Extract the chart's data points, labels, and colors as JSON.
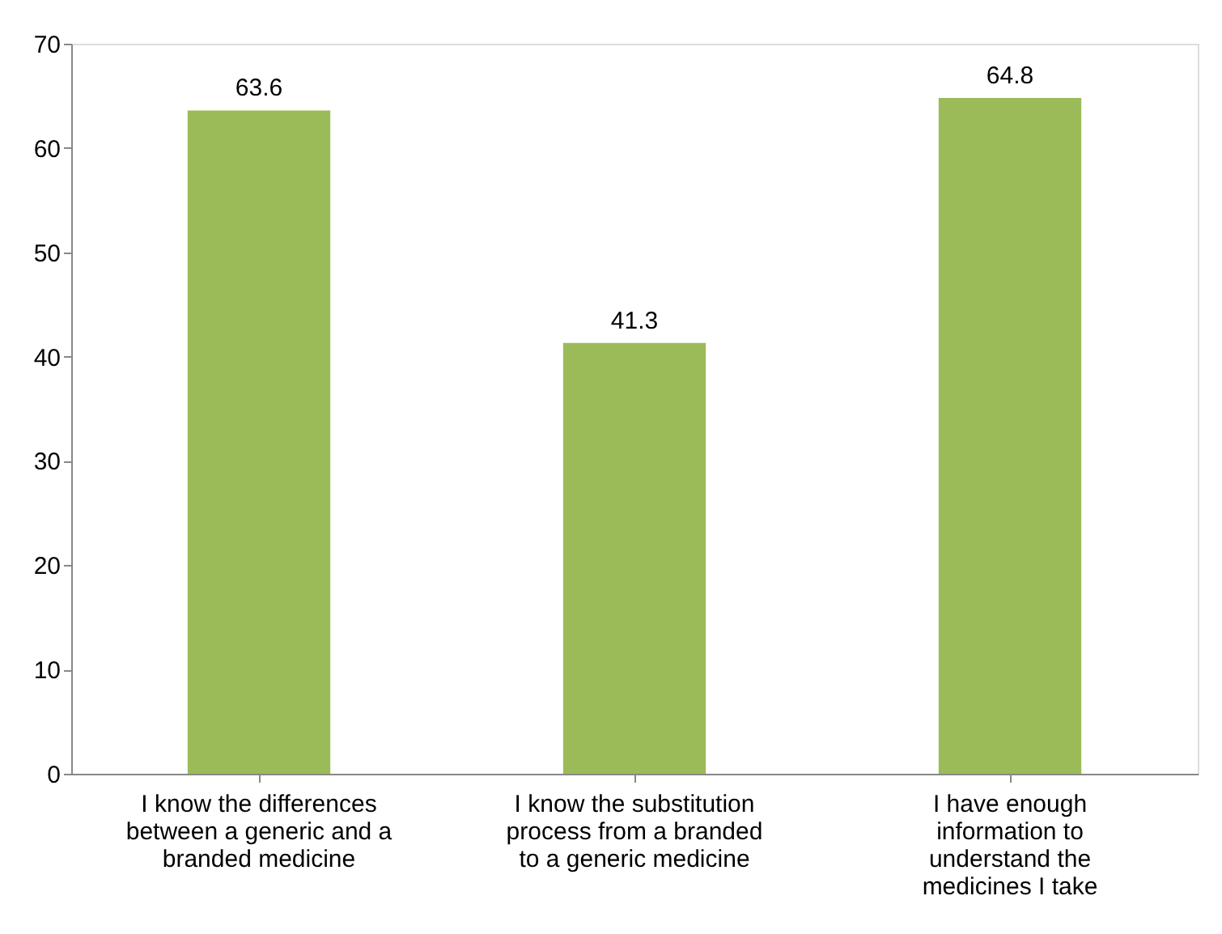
{
  "chart_data": {
    "type": "bar",
    "categories": [
      "I know the differences between a generic and a branded medicine",
      "I know the substitution process from a branded to a generic medicine",
      "I have enough information to understand the medicines I take"
    ],
    "values": [
      63.6,
      41.3,
      64.8
    ],
    "color": "#9bbb59",
    "ylim": [
      0,
      70
    ],
    "yticks": [
      0,
      10,
      20,
      30,
      40,
      50,
      60,
      70
    ],
    "grid": false,
    "data_labels": true
  }
}
